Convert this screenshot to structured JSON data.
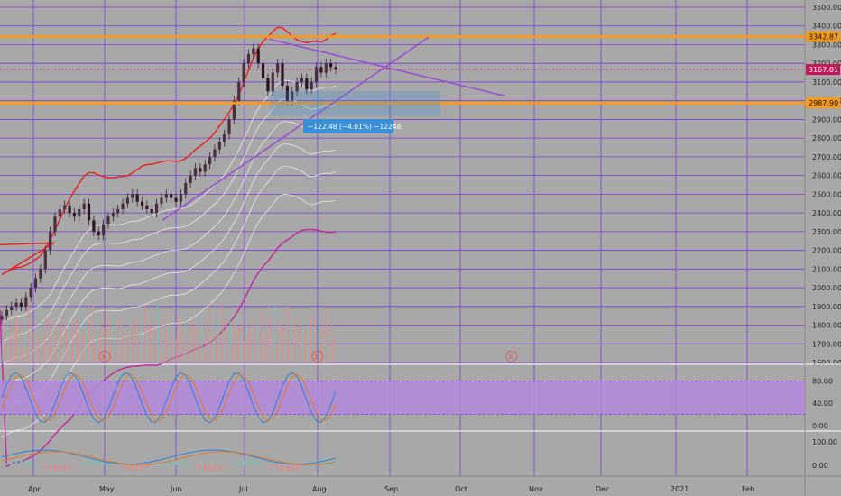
{
  "colors": {
    "background": "#a8a8a8",
    "grid": "#7b3fd4",
    "orange_level": "#f59a1f",
    "upper_band": "#e8201c",
    "mid_band": "#c0269a",
    "trendline": "#9b4fd0",
    "price_badge": "#c2185b",
    "stoch_fill": "#b08ad8",
    "measure_box": "#3a8fd8"
  },
  "price_axis": {
    "ticks": [
      "3500.00",
      "3400.00",
      "3300.00",
      "3200.00",
      "3100.00",
      "3000.00",
      "2900.00",
      "2800.00",
      "2700.00",
      "2600.00",
      "2500.00",
      "2400.00",
      "2300.00",
      "2200.00",
      "2100.00",
      "2000.00",
      "1900.00",
      "1800.00",
      "1700.00",
      "1600.00"
    ],
    "last_price": "3167.01",
    "level_upper": "3342.87",
    "level_lower": "2987.90"
  },
  "stoch_axis": {
    "ticks": [
      "80.00",
      "40.00",
      "0.00"
    ]
  },
  "macd_axis": {
    "ticks": [
      "100.00",
      "0.00"
    ]
  },
  "time_axis": {
    "labels": [
      "Apr",
      "May",
      "Jun",
      "Jul",
      "Aug",
      "Sep",
      "Oct",
      "Nov",
      "Dec",
      "2021",
      "Feb"
    ]
  },
  "measure_label": "−122.48 (−4.01%) −12248",
  "earnings_marker": "E",
  "chart_data": {
    "type": "candlestick",
    "symbol_visible": false,
    "y_range": [
      1600,
      3550
    ],
    "horizontal_levels": [
      3342.87,
      2987.9
    ],
    "last_price": 3167.01,
    "trend_start_month": "Apr",
    "approx_closes": [
      1850,
      1880,
      1900,
      1920,
      1900,
      1950,
      2000,
      2050,
      2100,
      2200,
      2300,
      2380,
      2420,
      2440,
      2400,
      2380,
      2420,
      2450,
      2360,
      2300,
      2280,
      2340,
      2380,
      2400,
      2420,
      2450,
      2480,
      2500,
      2460,
      2440,
      2420,
      2400,
      2450,
      2480,
      2500,
      2480,
      2460,
      2500,
      2560,
      2600,
      2640,
      2620,
      2660,
      2700,
      2740,
      2780,
      2820,
      2900,
      3000,
      3100,
      3200,
      3250,
      3280,
      3200,
      3120,
      3050,
      3150,
      3200,
      3080,
      3000,
      3050,
      3100,
      3120,
      3060,
      3100,
      3180,
      3150,
      3200,
      3180,
      3167
    ]
  }
}
